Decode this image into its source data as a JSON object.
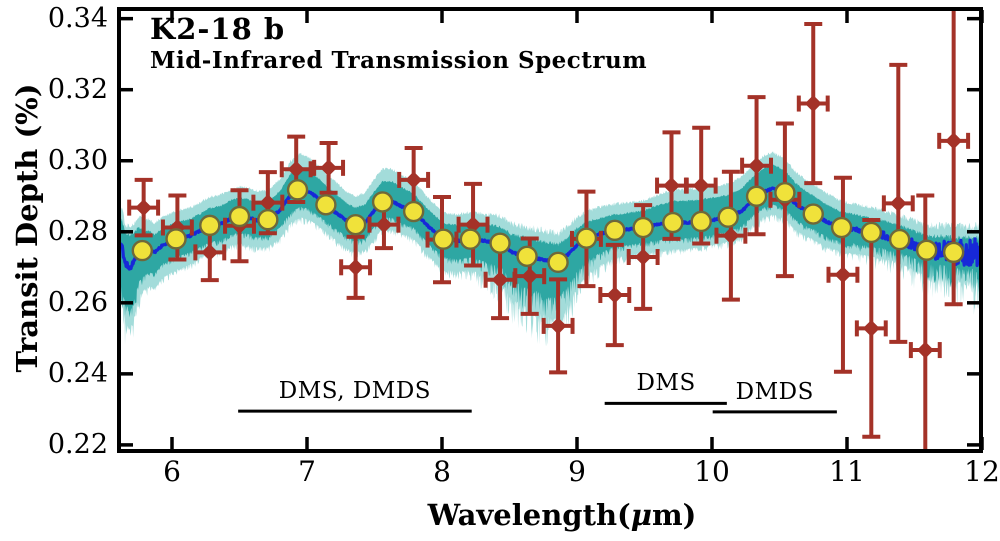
{
  "figure": {
    "title": "K2-18 b",
    "subtitle": "Mid-Infrared Transmission Spectrum",
    "ylabel": "Transit Depth (%)",
    "xlabel_pre": "Wavelength(",
    "xlabel_mu": "μ",
    "xlabel_post": "m)"
  },
  "colors": {
    "background": "#ffffff",
    "axis": "#000000",
    "observed_point": "#a43228",
    "model_line": "#1728d8",
    "band_inner": "#2ea7a3",
    "band_outer": "#a3dcda",
    "binned_marker_fill": "#f0e23a",
    "binned_marker_edge": "#6e683a"
  },
  "chart_data": {
    "type": "line",
    "title": "K2-18 b",
    "subtitle": "Mid-Infrared Transmission Spectrum",
    "xlabel": "Wavelength(μm)",
    "ylabel": "Transit Depth (%)",
    "xlim": [
      5.6,
      12.0
    ],
    "ylim": [
      0.218,
      0.343
    ],
    "x_ticks": [
      6,
      7,
      8,
      9,
      10,
      11,
      12
    ],
    "y_ticks": [
      0.22,
      0.24,
      0.26,
      0.28,
      0.3,
      0.32,
      0.34
    ],
    "y_tick_labels": [
      "0.22",
      "0.24",
      "0.26",
      "0.28",
      "0.30",
      "0.32",
      "0.34"
    ],
    "grid": false,
    "legend": "none",
    "series": [
      {
        "name": "observed-spectrum",
        "type": "errorbar-scatter",
        "color": "#a43228",
        "xerr": 0.107,
        "x": [
          5.79,
          6.04,
          6.28,
          6.5,
          6.71,
          6.92,
          7.16,
          7.36,
          7.57,
          7.79,
          8.0,
          8.23,
          8.43,
          8.65,
          8.86,
          9.07,
          9.28,
          9.49,
          9.7,
          9.92,
          10.14,
          10.33,
          10.54,
          10.75,
          10.97,
          11.18,
          11.38,
          11.58,
          11.79
        ],
        "y": [
          0.2868,
          0.2812,
          0.2742,
          0.2817,
          0.2882,
          0.2976,
          0.298,
          0.27,
          0.282,
          0.2946,
          0.2778,
          0.282,
          0.2665,
          0.2675,
          0.2535,
          0.278,
          0.2622,
          0.2729,
          0.293,
          0.293,
          0.2789,
          0.2986,
          0.289,
          0.3161,
          0.2679,
          0.2528,
          0.288,
          0.2467,
          0.3056
        ],
        "yerr": [
          0.0078,
          0.009,
          0.0078,
          0.01,
          0.0086,
          0.0092,
          0.007,
          0.0086,
          0.0066,
          0.009,
          0.012,
          0.0115,
          0.0108,
          0.0106,
          0.0131,
          0.0133,
          0.0141,
          0.0146,
          0.015,
          0.0163,
          0.018,
          0.0193,
          0.0215,
          0.0224,
          0.0273,
          0.0305,
          0.039,
          0.0435,
          0.046
        ]
      },
      {
        "name": "binned-model-points",
        "type": "scatter",
        "marker": "circle",
        "fill": "#f0e23a",
        "edge": "#6e683a",
        "x": [
          5.78,
          6.03,
          6.28,
          6.5,
          6.71,
          6.93,
          7.14,
          7.36,
          7.56,
          7.79,
          8.01,
          8.21,
          8.43,
          8.63,
          8.86,
          9.07,
          9.28,
          9.49,
          9.71,
          9.92,
          10.12,
          10.33,
          10.54,
          10.75,
          10.96,
          11.18,
          11.39,
          11.59,
          11.79
        ],
        "y": [
          0.2747,
          0.278,
          0.2818,
          0.2843,
          0.2834,
          0.2918,
          0.2876,
          0.282,
          0.2884,
          0.2857,
          0.2779,
          0.2779,
          0.2768,
          0.2731,
          0.2714,
          0.2782,
          0.2804,
          0.2812,
          0.2826,
          0.2829,
          0.2841,
          0.29,
          0.291,
          0.285,
          0.2812,
          0.2798,
          0.2778,
          0.2748,
          0.2742
        ]
      },
      {
        "name": "median-model",
        "type": "line",
        "color": "#1728d8",
        "x": [
          5.6,
          5.63,
          5.655,
          5.69,
          5.72,
          5.755,
          5.79,
          5.83,
          5.87,
          5.93,
          6.03,
          6.13,
          6.22,
          6.28,
          6.36,
          6.44,
          6.5,
          6.56,
          6.63,
          6.71,
          6.8,
          6.88,
          6.95,
          7.02,
          7.08,
          7.14,
          7.22,
          7.3,
          7.36,
          7.43,
          7.5,
          7.56,
          7.63,
          7.7,
          7.79,
          7.9,
          8.01,
          8.11,
          8.21,
          8.32,
          8.43,
          8.52,
          8.63,
          8.74,
          8.86,
          8.93,
          9.0,
          9.07,
          9.17,
          9.28,
          9.4,
          9.49,
          9.6,
          9.71,
          9.82,
          9.92,
          10.02,
          10.12,
          10.22,
          10.3,
          10.38,
          10.45,
          10.54,
          10.62,
          10.7,
          10.75,
          10.85,
          10.96,
          11.07,
          11.18,
          11.28,
          11.39,
          11.5,
          11.59,
          11.7,
          11.79,
          11.9,
          12.0
        ],
        "y": [
          0.276,
          0.2758,
          0.271,
          0.2695,
          0.2716,
          0.2747,
          0.2748,
          0.2752,
          0.2742,
          0.2762,
          0.278,
          0.2788,
          0.2805,
          0.2818,
          0.2822,
          0.2838,
          0.2843,
          0.284,
          0.2832,
          0.2834,
          0.286,
          0.2905,
          0.2922,
          0.2912,
          0.2895,
          0.2876,
          0.2852,
          0.283,
          0.282,
          0.2826,
          0.286,
          0.2884,
          0.2886,
          0.2872,
          0.2857,
          0.2815,
          0.2779,
          0.2774,
          0.2779,
          0.2774,
          0.2768,
          0.2742,
          0.2731,
          0.2722,
          0.2714,
          0.2735,
          0.2762,
          0.2782,
          0.2794,
          0.2804,
          0.2808,
          0.2812,
          0.282,
          0.2826,
          0.2826,
          0.2829,
          0.2834,
          0.2841,
          0.2858,
          0.2888,
          0.2912,
          0.2922,
          0.291,
          0.2878,
          0.2858,
          0.285,
          0.2828,
          0.2812,
          0.2806,
          0.2798,
          0.279,
          0.2778,
          0.2762,
          0.2748,
          0.2746,
          0.2742,
          0.274,
          0.2738
        ]
      },
      {
        "name": "confidence-bands",
        "type": "band",
        "inner_color": "#2ea7a3",
        "outer_color": "#a3dcda",
        "x": [
          5.6,
          5.69,
          5.79,
          5.95,
          6.2,
          6.5,
          6.71,
          6.95,
          7.14,
          7.36,
          7.56,
          7.79,
          8.01,
          8.21,
          8.43,
          8.63,
          8.86,
          9.07,
          9.28,
          9.49,
          9.71,
          9.92,
          10.12,
          10.45,
          10.54,
          10.75,
          11.0,
          11.4,
          11.79,
          12.0
        ],
        "inner_up": [
          0.006,
          0.009,
          0.005,
          0.0045,
          0.0045,
          0.005,
          0.0048,
          0.006,
          0.0052,
          0.0045,
          0.0055,
          0.0048,
          0.0042,
          0.0042,
          0.0042,
          0.0045,
          0.0045,
          0.0042,
          0.0042,
          0.0045,
          0.0058,
          0.006,
          0.006,
          0.0065,
          0.006,
          0.005,
          0.004,
          0.0035,
          0.0035,
          0.0035
        ],
        "inner_dn": [
          0.009,
          0.012,
          0.007,
          0.005,
          0.0045,
          0.0045,
          0.0045,
          0.005,
          0.0045,
          0.0045,
          0.0045,
          0.0045,
          0.005,
          0.005,
          0.0065,
          0.009,
          0.01,
          0.006,
          0.0045,
          0.0042,
          0.0045,
          0.0042,
          0.004,
          0.0045,
          0.0045,
          0.0042,
          0.004,
          0.0035,
          0.004,
          0.0045
        ],
        "outer_up": [
          0.009,
          0.011,
          0.008,
          0.0075,
          0.0075,
          0.008,
          0.0078,
          0.0095,
          0.0085,
          0.0075,
          0.009,
          0.008,
          0.007,
          0.007,
          0.007,
          0.0072,
          0.0072,
          0.007,
          0.007,
          0.0072,
          0.0088,
          0.009,
          0.009,
          0.0098,
          0.009,
          0.008,
          0.0068,
          0.006,
          0.006,
          0.006
        ],
        "outer_dn": [
          0.014,
          0.017,
          0.011,
          0.009,
          0.0075,
          0.0075,
          0.0075,
          0.008,
          0.0075,
          0.0078,
          0.0075,
          0.0075,
          0.0085,
          0.0085,
          0.011,
          0.0145,
          0.016,
          0.01,
          0.0075,
          0.007,
          0.0075,
          0.007,
          0.0068,
          0.0072,
          0.0072,
          0.007,
          0.0068,
          0.0065,
          0.0075,
          0.008
        ]
      }
    ],
    "annotations": [
      {
        "label": "DMS, DMDS",
        "x1": 6.49,
        "x2": 8.22,
        "line_y": 0.2295,
        "text_x": 7.355,
        "text_y": 0.2352
      },
      {
        "label": "DMS",
        "x1": 9.205,
        "x2": 10.11,
        "line_y": 0.2317,
        "text_x": 9.66,
        "text_y": 0.2374
      },
      {
        "label": "DMDS",
        "x1": 10.005,
        "x2": 10.925,
        "line_y": 0.2293,
        "text_x": 10.465,
        "text_y": 0.2349
      }
    ]
  }
}
